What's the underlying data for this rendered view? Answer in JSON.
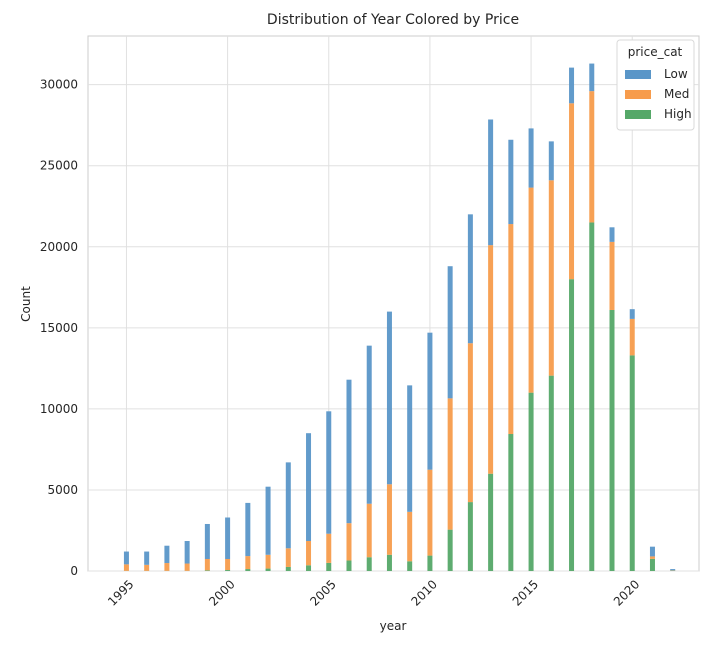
{
  "chart_data": {
    "type": "bar",
    "stacked": true,
    "title": "Distribution of Year Colored by Price",
    "xlabel": "year",
    "ylabel": "Count",
    "xlim": [
      1993.1,
      2023.3
    ],
    "ylim": [
      0,
      33000
    ],
    "grid": true,
    "x_ticks": [
      1995,
      2000,
      2005,
      2010,
      2015,
      2020
    ],
    "x_tick_labels": [
      "1995",
      "2000",
      "2005",
      "2010",
      "2015",
      "2020"
    ],
    "y_ticks": [
      0,
      5000,
      10000,
      15000,
      20000,
      25000,
      30000
    ],
    "y_tick_labels": [
      "0",
      "5000",
      "10000",
      "15000",
      "20000",
      "25000",
      "30000"
    ],
    "legend": {
      "title": "price_cat",
      "position": "top-right"
    },
    "x": [
      1995,
      1996,
      1997,
      1998,
      1999,
      2000,
      2001,
      2002,
      2003,
      2004,
      2005,
      2006,
      2007,
      2008,
      2009,
      2010,
      2011,
      2012,
      2013,
      2014,
      2015,
      2016,
      2017,
      2018,
      2019,
      2020,
      2021,
      2022
    ],
    "series": [
      {
        "name": "High",
        "color": "#55a868",
        "values": [
          10,
          10,
          10,
          10,
          40,
          60,
          120,
          150,
          250,
          350,
          500,
          650,
          850,
          1000,
          600,
          950,
          2550,
          4250,
          6000,
          8450,
          11000,
          12050,
          18000,
          21500,
          16100,
          13300,
          750,
          20
        ]
      },
      {
        "name": "Med",
        "color": "#f79c4c",
        "values": [
          400,
          370,
          480,
          450,
          700,
          680,
          800,
          850,
          1150,
          1500,
          1800,
          2300,
          3300,
          4350,
          3050,
          5300,
          8100,
          9800,
          14100,
          12950,
          12650,
          12050,
          10850,
          8100,
          4200,
          2250,
          150,
          20
        ]
      },
      {
        "name": "Low",
        "color": "#5a96c8",
        "values": [
          790,
          820,
          1070,
          1390,
          2160,
          2560,
          3280,
          4200,
          5300,
          6650,
          7550,
          8850,
          9750,
          10650,
          7800,
          8450,
          8150,
          7950,
          7750,
          5200,
          3650,
          2400,
          2200,
          1700,
          900,
          600,
          600,
          80
        ]
      }
    ]
  }
}
